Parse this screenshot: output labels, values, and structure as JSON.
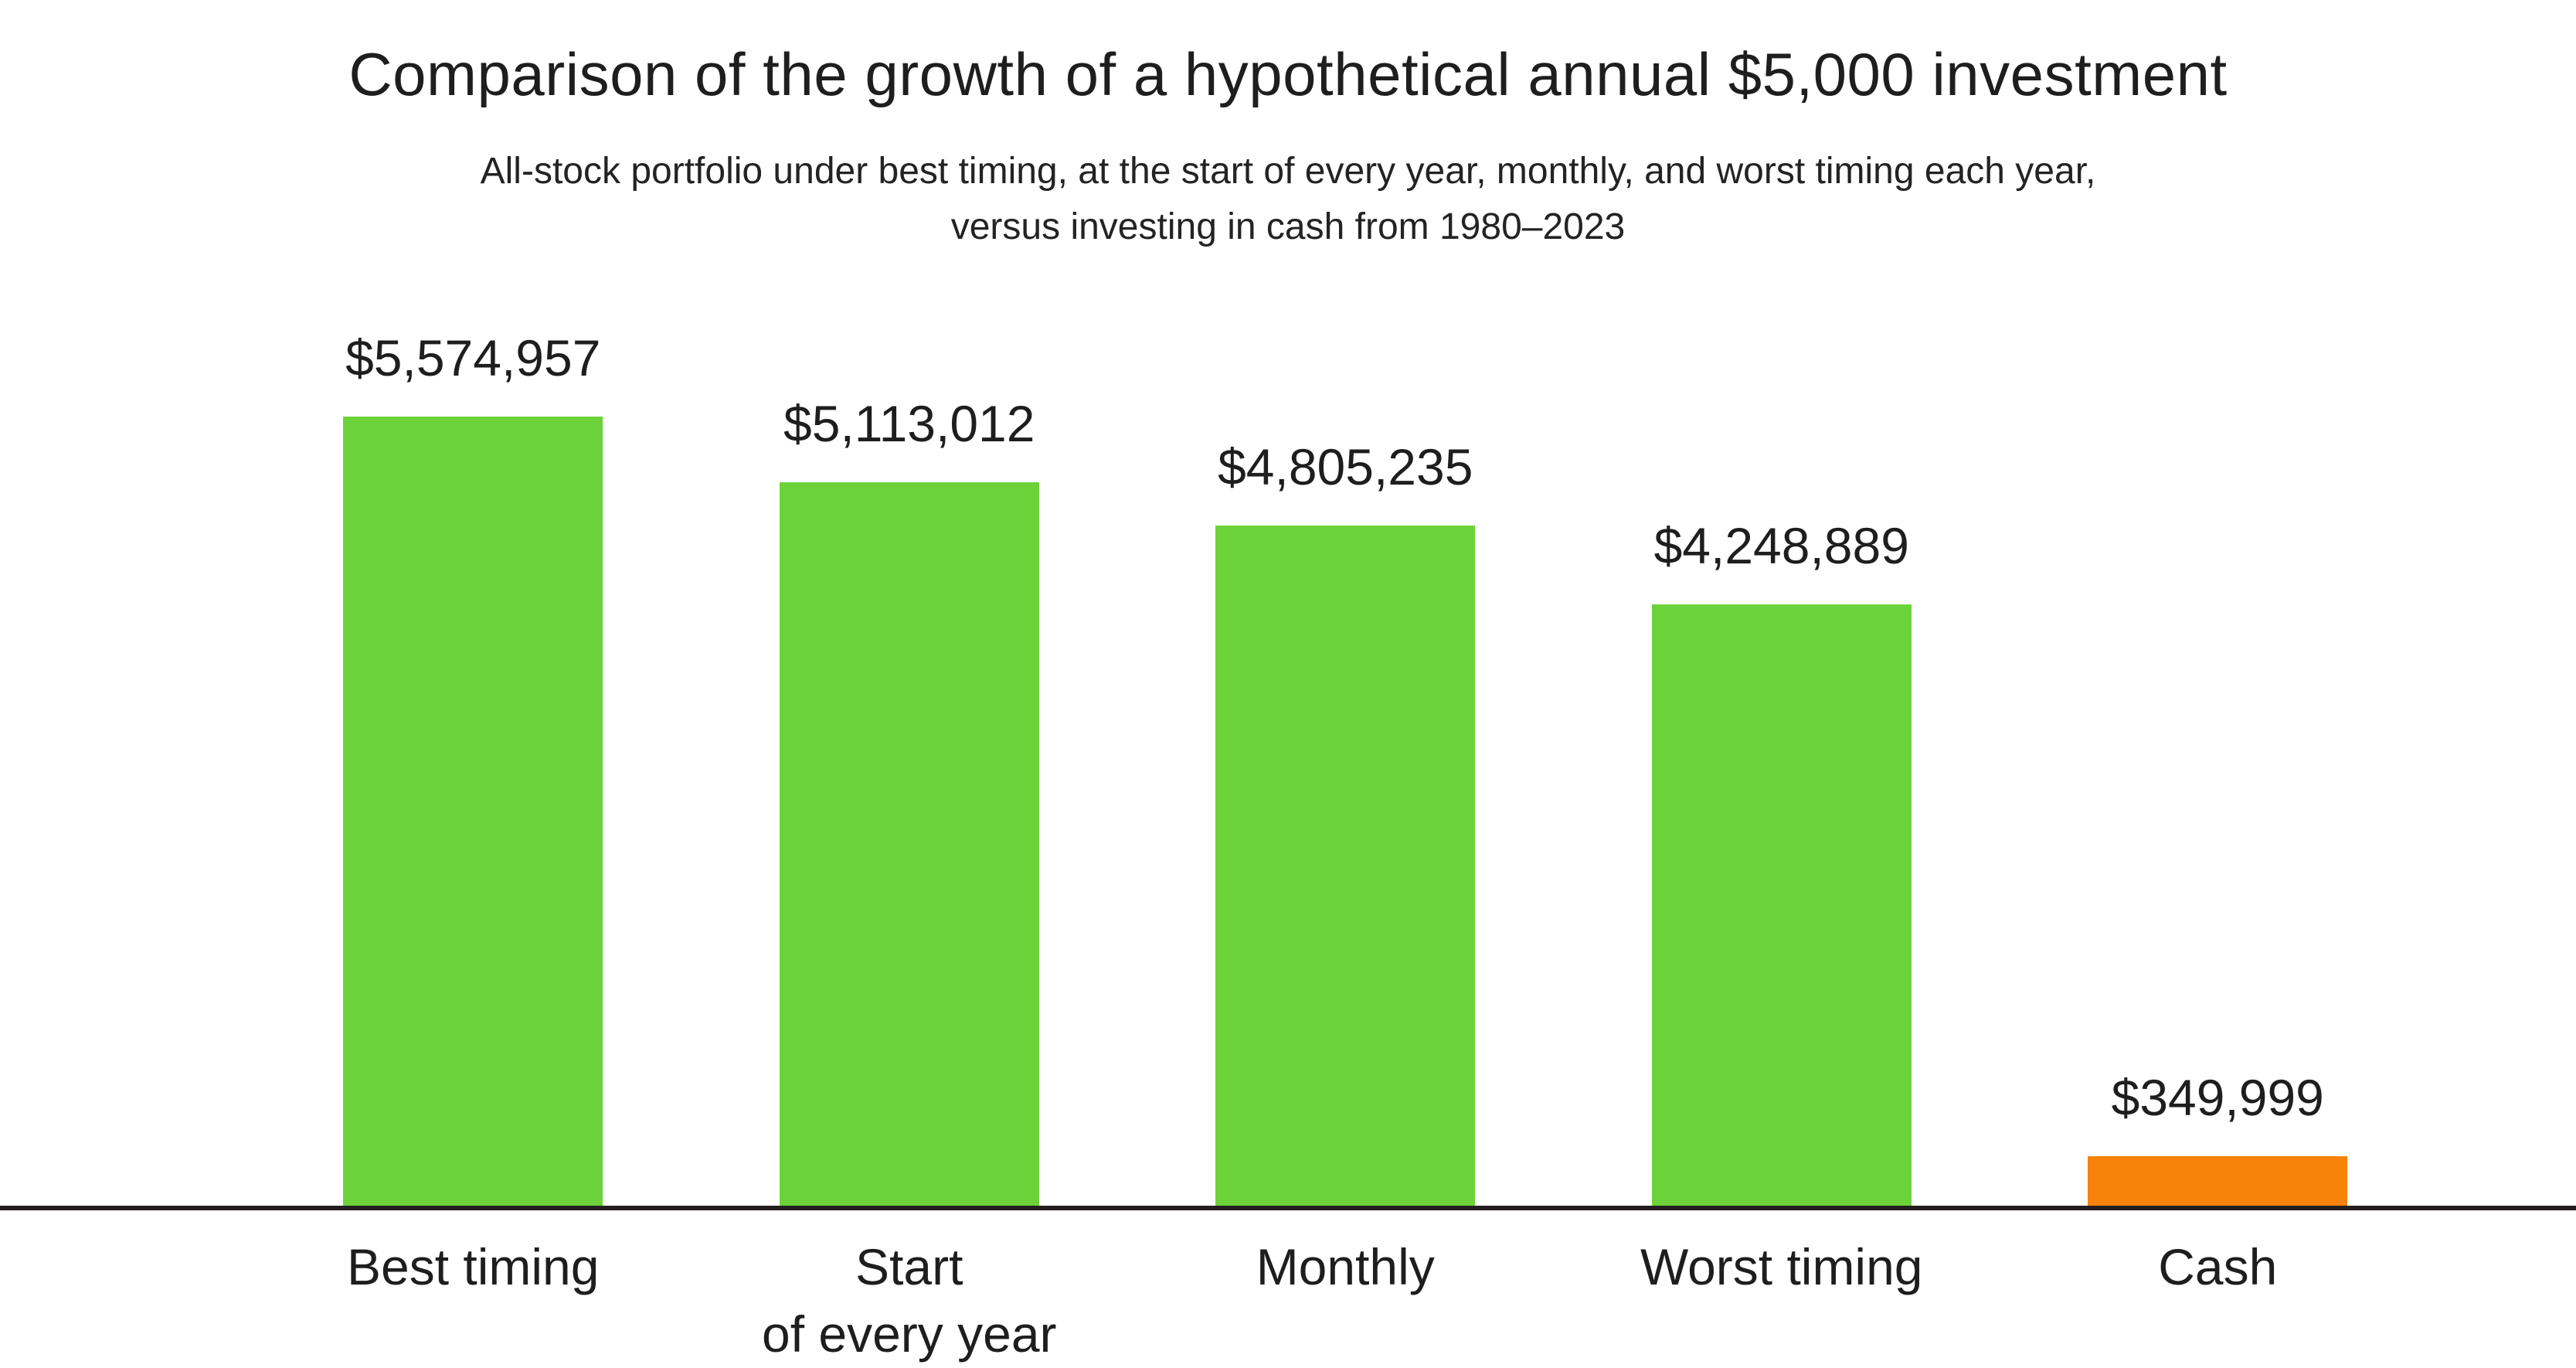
{
  "header": {
    "title": "Comparison of the growth of a hypothetical annual $5,000 investment",
    "subtitle_line1": "All-stock portfolio under best timing, at the start of every year, monthly, and worst timing each year,",
    "subtitle_line2": "versus investing in cash from 1980–2023"
  },
  "chart_data": {
    "type": "bar",
    "title": "Comparison of the growth of a hypothetical annual $5,000 investment",
    "subtitle": "All-stock portfolio under best timing, at the start of every year, monthly, and worst timing each year, versus investing in cash from 1980–2023",
    "categories": [
      "Best timing",
      "Start of every year",
      "Monthly",
      "Worst timing",
      "Cash"
    ],
    "cat_lines": [
      [
        "Best timing",
        ""
      ],
      [
        "Start",
        "of every year"
      ],
      [
        "Monthly",
        ""
      ],
      [
        "Worst timing",
        ""
      ],
      [
        "Cash",
        ""
      ]
    ],
    "values": [
      5574957,
      5113012,
      4805235,
      4248889,
      349999
    ],
    "value_labels": [
      "$5,574,957",
      "$5,113,012",
      "$4,805,235",
      "$4,248,889",
      "$349,999"
    ],
    "bar_colors": [
      "#6BD339",
      "#6BD339",
      "#6BD339",
      "#6BD339",
      "#F8820A"
    ],
    "accent_green": "#6BD339",
    "accent_orange": "#F8820A",
    "axis_color": "#231f20",
    "text_color": "#1e1e1e",
    "ylim": [
      0,
      5574957
    ],
    "grid": false,
    "legend": false,
    "xlabel": "",
    "ylabel": ""
  }
}
